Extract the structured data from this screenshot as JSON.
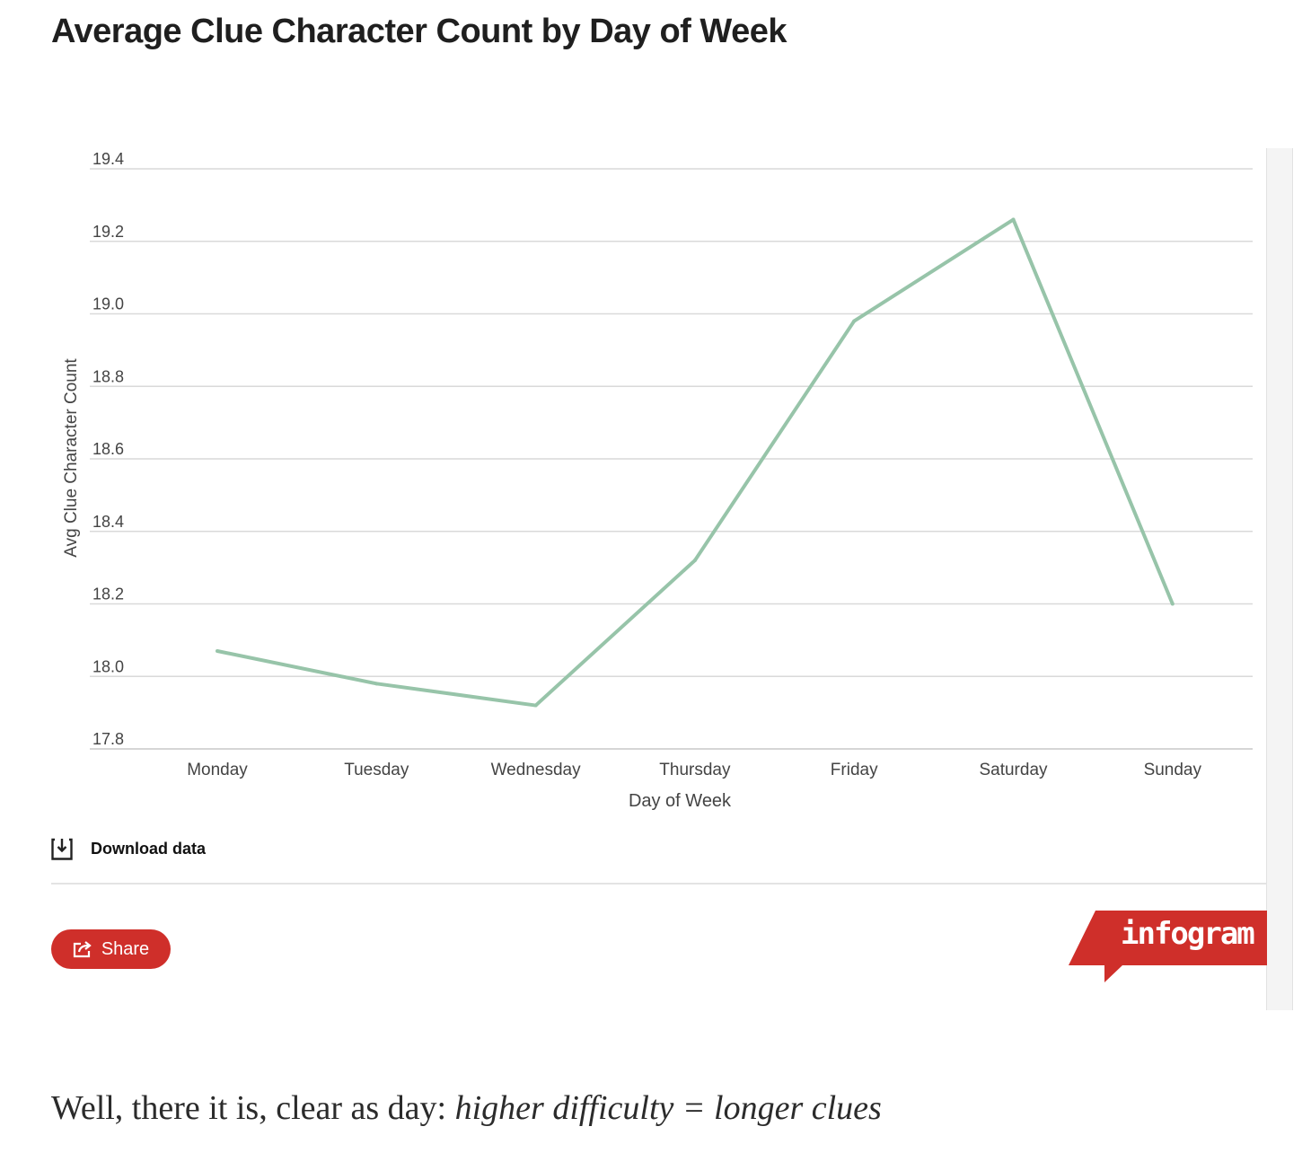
{
  "header": {
    "title": "Average Clue Character Count by Day of Week"
  },
  "chart_data": {
    "type": "line",
    "title": "Average Clue Character Count by Day of Week",
    "xlabel": "Day of Week",
    "ylabel": "Avg Clue Character Count",
    "categories": [
      "Monday",
      "Tuesday",
      "Wednesday",
      "Thursday",
      "Friday",
      "Saturday",
      "Sunday"
    ],
    "series": [
      {
        "values": [
          18.07,
          17.98,
          17.92,
          18.32,
          18.98,
          19.26,
          18.2
        ]
      }
    ],
    "ylim": [
      17.8,
      19.4
    ],
    "yticks": [
      "17.8",
      "18.0",
      "18.2",
      "18.4",
      "18.6",
      "18.8",
      "19.0",
      "19.2",
      "19.4"
    ],
    "grid": true,
    "line_color": "#97c4a9"
  },
  "actions": {
    "download_label": "Download data",
    "share_label": "Share"
  },
  "branding": {
    "logo_text": "infogram",
    "brand_color": "#cf2f2a"
  },
  "caption": {
    "prefix": "Well, there it is, clear as day: ",
    "emphasis": "higher difficulty = longer clues"
  }
}
